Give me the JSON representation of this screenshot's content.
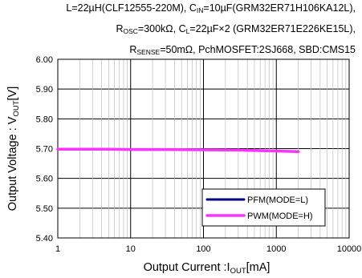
{
  "header": {
    "line1": "L=22µH(CLF12555-220M), Cᴵⁿ=10µF(GRM32ER71H106KA12L),",
    "line1_a": "L=22µH(CLF12555-220M), C",
    "line1_sub": "IN",
    "line1_b": "=10µF(GRM32ER71H106KA12L),",
    "line2_a": "R",
    "line2_sub1": "OSC",
    "line2_b": "=300kΩ, C",
    "line2_sub2": "L",
    "line2_c": "=22µF×2 (GRM32ER71E226KE15L),",
    "line3_a": "R",
    "line3_sub": "SENSE",
    "line3_b": "=50mΩ, PchMOSFET:2SJ668, SBD:CMS15"
  },
  "chart_data": {
    "type": "line",
    "title": "L=22µH(CLF12555-220M), CIN=10µF(GRM32ER71H106KA12L), ROSC=300kΩ, CL=22µF×2 (GRM32ER71E226KE15L), RSENSE=50mΩ, PchMOSFET:2SJ668, SBD:CMS15",
    "xlabel_main": "Output Current :I",
    "xlabel_sub": "OUT",
    "xlabel_unit": "[mA]",
    "ylabel_main": "Output Voltage : V",
    "ylabel_sub": "OUT",
    "ylabel_unit": "[V]",
    "x_scale": "log",
    "xlim": [
      1,
      10000
    ],
    "ylim": [
      5.4,
      6.0
    ],
    "x_ticks": [
      1,
      10,
      100,
      1000,
      10000
    ],
    "x_tick_labels": [
      "1",
      "10",
      "100",
      "1000",
      "10000"
    ],
    "y_ticks": [
      5.4,
      5.5,
      5.6,
      5.7,
      5.8,
      5.9,
      6.0
    ],
    "y_tick_labels": [
      "5.40",
      "5.50",
      "5.60",
      "5.70",
      "5.80",
      "5.90",
      "6.00"
    ],
    "grid": true,
    "legend_position": "bottom-right",
    "series": [
      {
        "name": "PFM(MODE=L)",
        "color": "#000080",
        "x": [
          1,
          3,
          10,
          30,
          100,
          300,
          1000,
          2000
        ],
        "y": [
          5.698,
          5.698,
          5.697,
          5.697,
          5.696,
          5.695,
          5.692,
          5.69
        ]
      },
      {
        "name": "PWM(MODE=H)",
        "color": "#ff33ff",
        "x": [
          1,
          3,
          10,
          30,
          100,
          300,
          1000,
          2000
        ],
        "y": [
          5.698,
          5.698,
          5.697,
          5.697,
          5.696,
          5.695,
          5.692,
          5.69
        ]
      }
    ]
  }
}
